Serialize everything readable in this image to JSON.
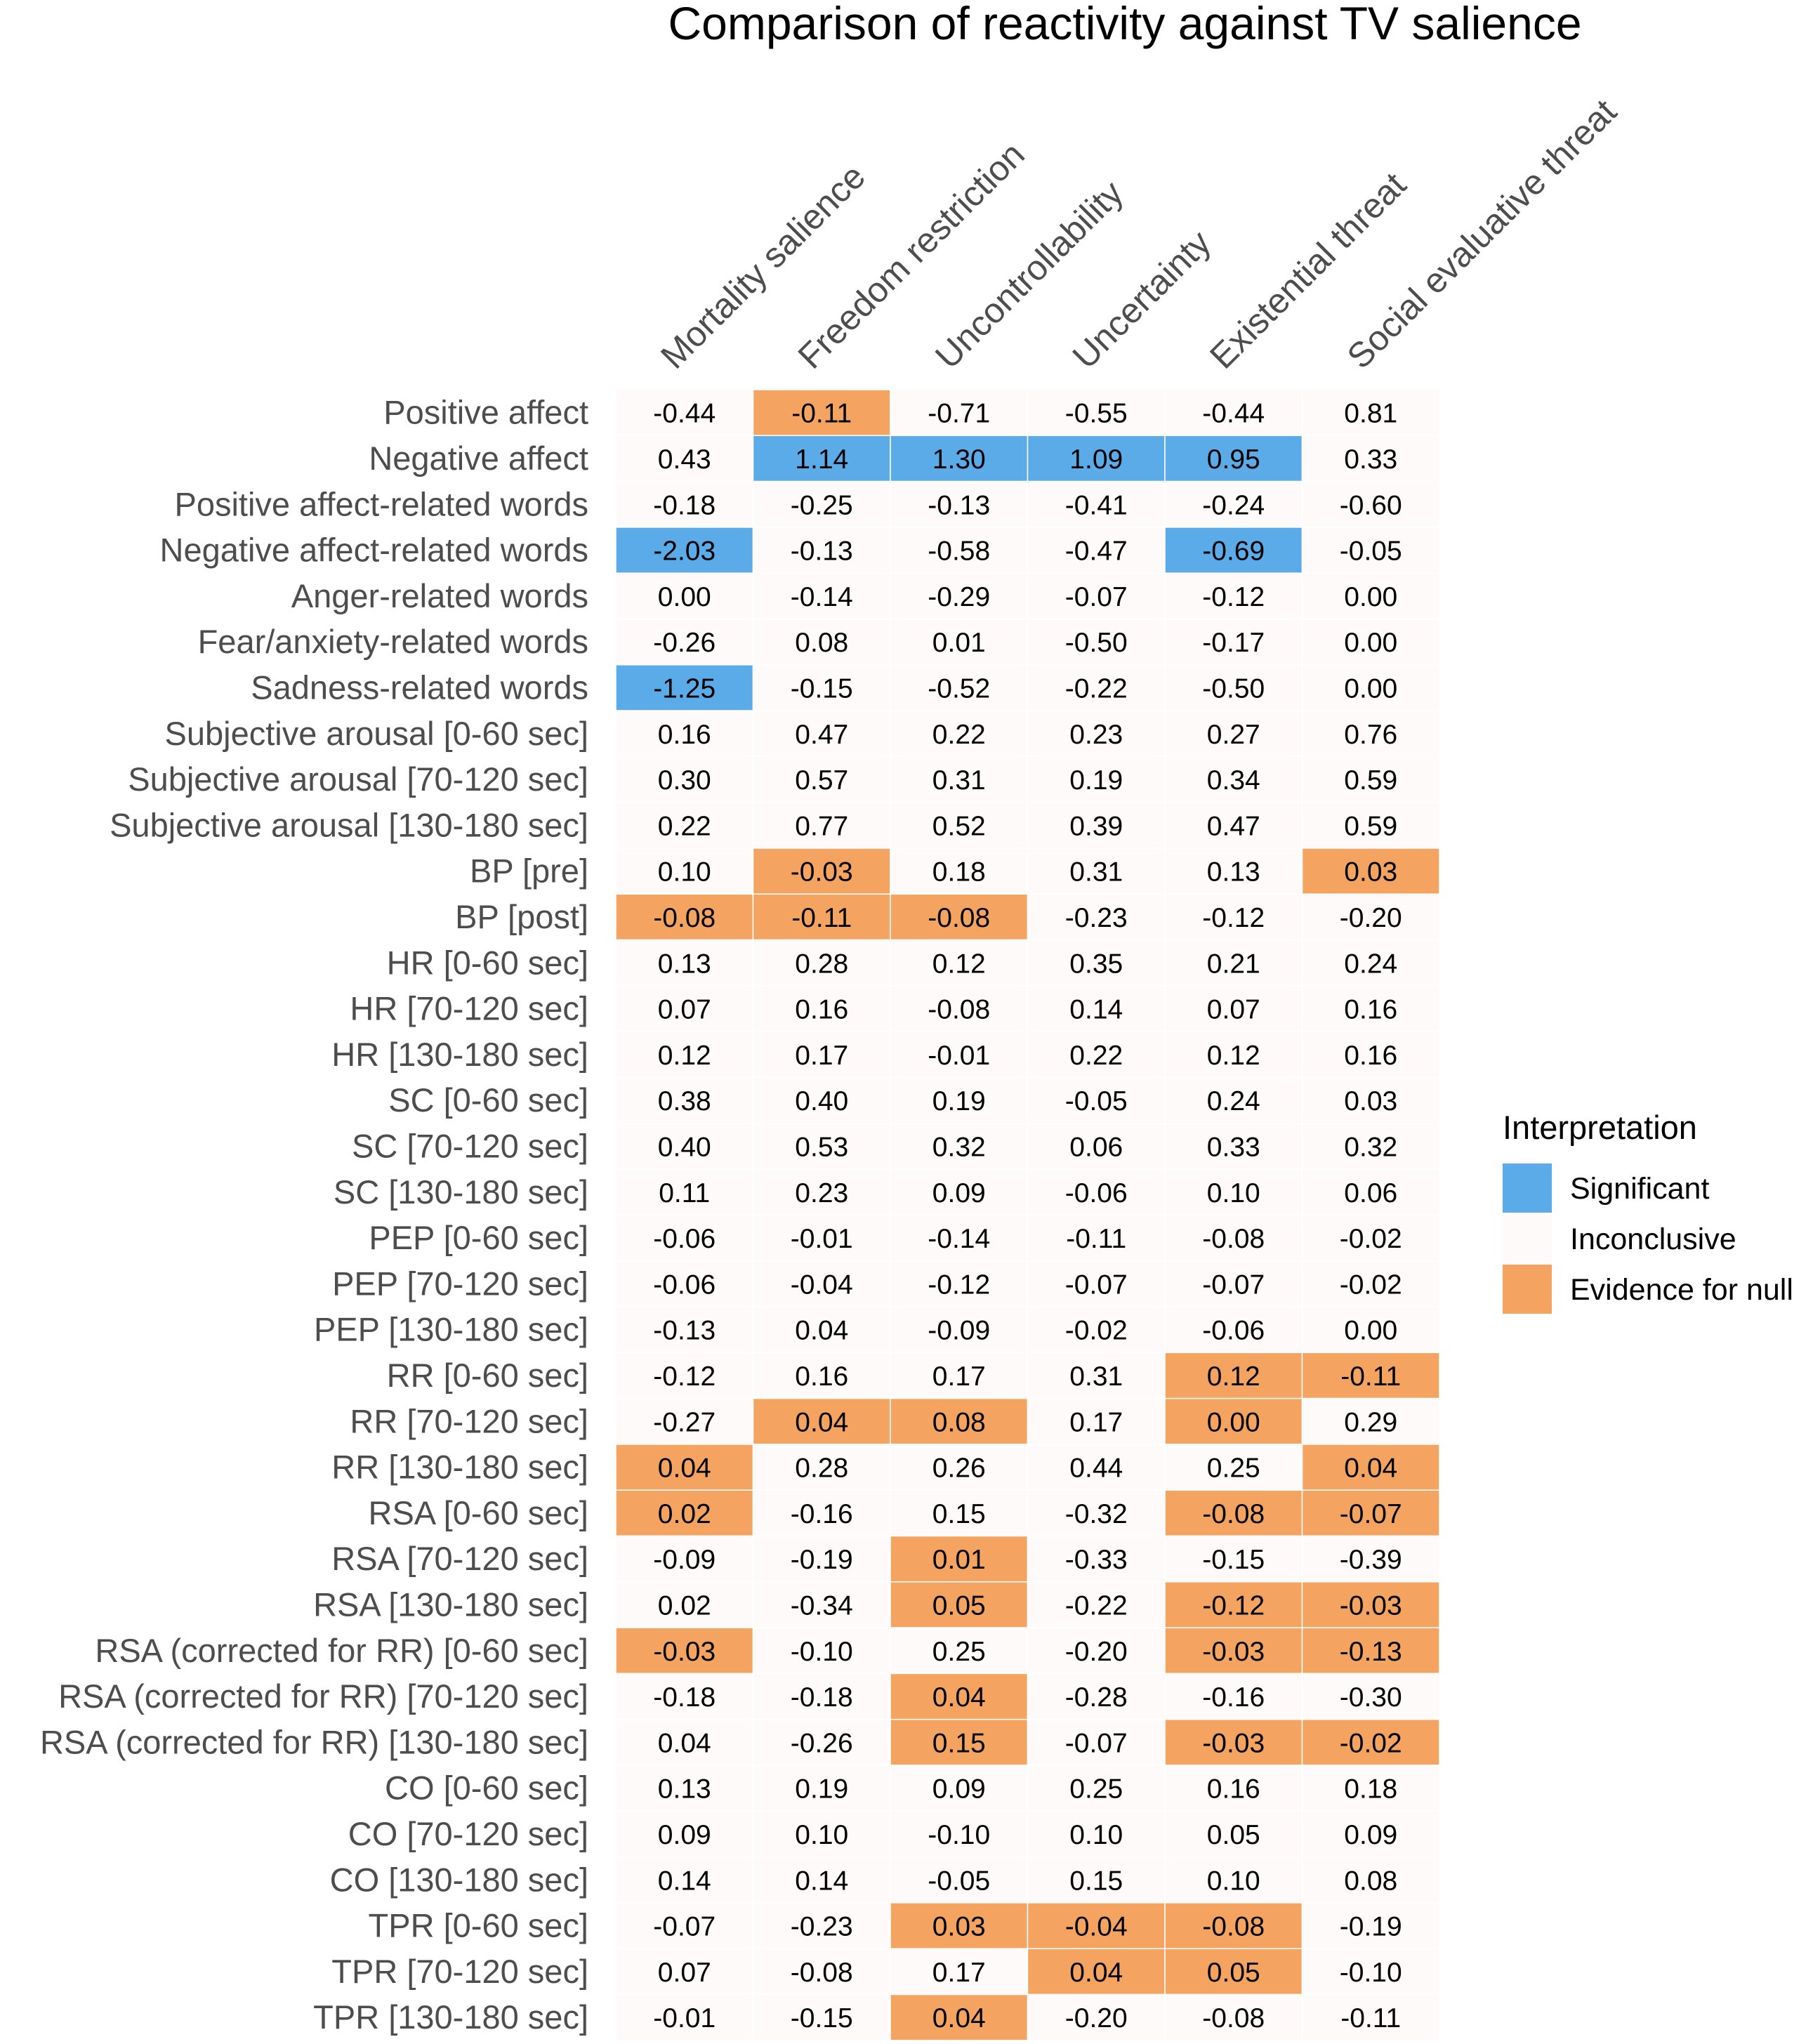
{
  "chart_data": {
    "type": "heatmap",
    "title": "Comparison of reactivity against TV salience",
    "columns": [
      "Mortality salience",
      "Freedom restriction",
      "Uncontrollability",
      "Uncertainty",
      "Existential threat",
      "Social evaluative threat"
    ],
    "rows": [
      "Positive affect",
      "Negative affect",
      "Positive affect-related words",
      "Negative affect-related words",
      "Anger-related words",
      "Fear/anxiety-related words",
      "Sadness-related words",
      "Subjective arousal [0-60 sec]",
      "Subjective arousal [70-120 sec]",
      "Subjective arousal [130-180 sec]",
      "BP [pre]",
      "BP [post]",
      "HR [0-60 sec]",
      "HR [70-120 sec]",
      "HR [130-180 sec]",
      "SC [0-60 sec]",
      "SC [70-120 sec]",
      "SC [130-180 sec]",
      "PEP [0-60 sec]",
      "PEP [70-120 sec]",
      "PEP [130-180 sec]",
      "RR [0-60 sec]",
      "RR [70-120 sec]",
      "RR [130-180 sec]",
      "RSA [0-60 sec]",
      "RSA [70-120 sec]",
      "RSA [130-180 sec]",
      "RSA (corrected for RR) [0-60 sec]",
      "RSA (corrected for RR) [70-120 sec]",
      "RSA (corrected for RR) [130-180 sec]",
      "CO [0-60 sec]",
      "CO [70-120 sec]",
      "CO [130-180 sec]",
      "TPR [0-60 sec]",
      "TPR [70-120 sec]",
      "TPR [130-180 sec]"
    ],
    "values": [
      [
        "-0.44",
        "-0.11",
        "-0.71",
        "-0.55",
        "-0.44",
        "0.81"
      ],
      [
        "0.43",
        "1.14",
        "1.30",
        "1.09",
        "0.95",
        "0.33"
      ],
      [
        "-0.18",
        "-0.25",
        "-0.13",
        "-0.41",
        "-0.24",
        "-0.60"
      ],
      [
        "-2.03",
        "-0.13",
        "-0.58",
        "-0.47",
        "-0.69",
        "-0.05"
      ],
      [
        "0.00",
        "-0.14",
        "-0.29",
        "-0.07",
        "-0.12",
        "0.00"
      ],
      [
        "-0.26",
        "0.08",
        "0.01",
        "-0.50",
        "-0.17",
        "0.00"
      ],
      [
        "-1.25",
        "-0.15",
        "-0.52",
        "-0.22",
        "-0.50",
        "0.00"
      ],
      [
        "0.16",
        "0.47",
        "0.22",
        "0.23",
        "0.27",
        "0.76"
      ],
      [
        "0.30",
        "0.57",
        "0.31",
        "0.19",
        "0.34",
        "0.59"
      ],
      [
        "0.22",
        "0.77",
        "0.52",
        "0.39",
        "0.47",
        "0.59"
      ],
      [
        "0.10",
        "-0.03",
        "0.18",
        "0.31",
        "0.13",
        "0.03"
      ],
      [
        "-0.08",
        "-0.11",
        "-0.08",
        "-0.23",
        "-0.12",
        "-0.20"
      ],
      [
        "0.13",
        "0.28",
        "0.12",
        "0.35",
        "0.21",
        "0.24"
      ],
      [
        "0.07",
        "0.16",
        "-0.08",
        "0.14",
        "0.07",
        "0.16"
      ],
      [
        "0.12",
        "0.17",
        "-0.01",
        "0.22",
        "0.12",
        "0.16"
      ],
      [
        "0.38",
        "0.40",
        "0.19",
        "-0.05",
        "0.24",
        "0.03"
      ],
      [
        "0.40",
        "0.53",
        "0.32",
        "0.06",
        "0.33",
        "0.32"
      ],
      [
        "0.11",
        "0.23",
        "0.09",
        "-0.06",
        "0.10",
        "0.06"
      ],
      [
        "-0.06",
        "-0.01",
        "-0.14",
        "-0.11",
        "-0.08",
        "-0.02"
      ],
      [
        "-0.06",
        "-0.04",
        "-0.12",
        "-0.07",
        "-0.07",
        "-0.02"
      ],
      [
        "-0.13",
        "0.04",
        "-0.09",
        "-0.02",
        "-0.06",
        "0.00"
      ],
      [
        "-0.12",
        "0.16",
        "0.17",
        "0.31",
        "0.12",
        "-0.11"
      ],
      [
        "-0.27",
        "0.04",
        "0.08",
        "0.17",
        "0.00",
        "0.29"
      ],
      [
        "0.04",
        "0.28",
        "0.26",
        "0.44",
        "0.25",
        "0.04"
      ],
      [
        "0.02",
        "-0.16",
        "0.15",
        "-0.32",
        "-0.08",
        "-0.07"
      ],
      [
        "-0.09",
        "-0.19",
        "0.01",
        "-0.33",
        "-0.15",
        "-0.39"
      ],
      [
        "0.02",
        "-0.34",
        "0.05",
        "-0.22",
        "-0.12",
        "-0.03"
      ],
      [
        "-0.03",
        "-0.10",
        "0.25",
        "-0.20",
        "-0.03",
        "-0.13"
      ],
      [
        "-0.18",
        "-0.18",
        "0.04",
        "-0.28",
        "-0.16",
        "-0.30"
      ],
      [
        "0.04",
        "-0.26",
        "0.15",
        "-0.07",
        "-0.03",
        "-0.02"
      ],
      [
        "0.13",
        "0.19",
        "0.09",
        "0.25",
        "0.16",
        "0.18"
      ],
      [
        "0.09",
        "0.10",
        "-0.10",
        "0.10",
        "0.05",
        "0.09"
      ],
      [
        "0.14",
        "0.14",
        "-0.05",
        "0.15",
        "0.10",
        "0.08"
      ],
      [
        "-0.07",
        "-0.23",
        "0.03",
        "-0.04",
        "-0.08",
        "-0.19"
      ],
      [
        "0.07",
        "-0.08",
        "0.17",
        "0.04",
        "0.05",
        "-0.10"
      ],
      [
        "-0.01",
        "-0.15",
        "0.04",
        "-0.20",
        "-0.08",
        "-0.11"
      ]
    ],
    "interpretation": [
      [
        "I",
        "N",
        "I",
        "I",
        "I",
        "I"
      ],
      [
        "I",
        "S",
        "S",
        "S",
        "S",
        "I"
      ],
      [
        "I",
        "I",
        "I",
        "I",
        "I",
        "I"
      ],
      [
        "S",
        "I",
        "I",
        "I",
        "S",
        "I"
      ],
      [
        "I",
        "I",
        "I",
        "I",
        "I",
        "I"
      ],
      [
        "I",
        "I",
        "I",
        "I",
        "I",
        "I"
      ],
      [
        "S",
        "I",
        "I",
        "I",
        "I",
        "I"
      ],
      [
        "I",
        "I",
        "I",
        "I",
        "I",
        "I"
      ],
      [
        "I",
        "I",
        "I",
        "I",
        "I",
        "I"
      ],
      [
        "I",
        "I",
        "I",
        "I",
        "I",
        "I"
      ],
      [
        "I",
        "N",
        "I",
        "I",
        "I",
        "N"
      ],
      [
        "N",
        "N",
        "N",
        "I",
        "I",
        "I"
      ],
      [
        "I",
        "I",
        "I",
        "I",
        "I",
        "I"
      ],
      [
        "I",
        "I",
        "I",
        "I",
        "I",
        "I"
      ],
      [
        "I",
        "I",
        "I",
        "I",
        "I",
        "I"
      ],
      [
        "I",
        "I",
        "I",
        "I",
        "I",
        "I"
      ],
      [
        "I",
        "I",
        "I",
        "I",
        "I",
        "I"
      ],
      [
        "I",
        "I",
        "I",
        "I",
        "I",
        "I"
      ],
      [
        "I",
        "I",
        "I",
        "I",
        "I",
        "I"
      ],
      [
        "I",
        "I",
        "I",
        "I",
        "I",
        "I"
      ],
      [
        "I",
        "I",
        "I",
        "I",
        "I",
        "I"
      ],
      [
        "I",
        "I",
        "I",
        "I",
        "N",
        "N"
      ],
      [
        "I",
        "N",
        "N",
        "I",
        "N",
        "I"
      ],
      [
        "N",
        "I",
        "I",
        "I",
        "I",
        "N"
      ],
      [
        "N",
        "I",
        "I",
        "I",
        "N",
        "N"
      ],
      [
        "I",
        "I",
        "N",
        "I",
        "I",
        "I"
      ],
      [
        "I",
        "I",
        "N",
        "I",
        "N",
        "N"
      ],
      [
        "N",
        "I",
        "I",
        "I",
        "N",
        "N"
      ],
      [
        "I",
        "I",
        "N",
        "I",
        "I",
        "I"
      ],
      [
        "I",
        "I",
        "N",
        "I",
        "N",
        "N"
      ],
      [
        "I",
        "I",
        "I",
        "I",
        "I",
        "I"
      ],
      [
        "I",
        "I",
        "I",
        "I",
        "I",
        "I"
      ],
      [
        "I",
        "I",
        "I",
        "I",
        "I",
        "I"
      ],
      [
        "I",
        "I",
        "N",
        "N",
        "N",
        "I"
      ],
      [
        "I",
        "I",
        "I",
        "N",
        "N",
        "I"
      ],
      [
        "I",
        "I",
        "N",
        "I",
        "I",
        "I"
      ]
    ],
    "legend": {
      "title": "Interpretation",
      "position": "right",
      "items": [
        {
          "code": "S",
          "label": "Significant",
          "color": "#5aabe8"
        },
        {
          "code": "I",
          "label": "Inconclusive",
          "color": "#fdfaf9"
        },
        {
          "code": "N",
          "label": "Evidence for null",
          "color": "#f4a460"
        }
      ]
    }
  }
}
